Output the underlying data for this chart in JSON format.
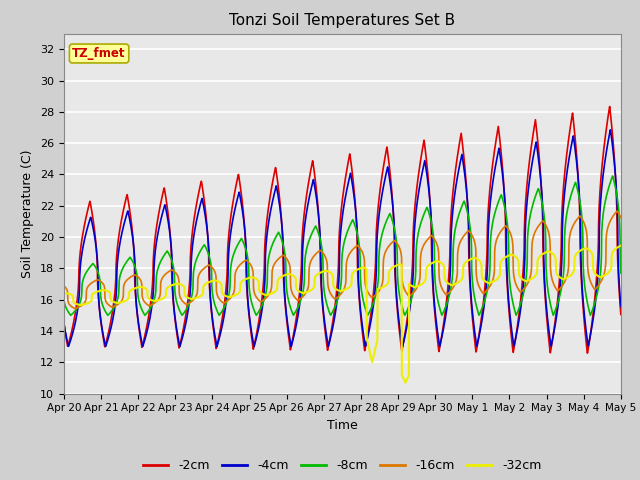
{
  "title": "Tonzi Soil Temperatures Set B",
  "xlabel": "Time",
  "ylabel": "Soil Temperature (C)",
  "ylim": [
    10,
    33
  ],
  "yticks": [
    10,
    12,
    14,
    16,
    18,
    20,
    22,
    24,
    26,
    28,
    30,
    32
  ],
  "fig_bg_color": "#d0d0d0",
  "plot_bg_color": "#e8e8e8",
  "grid_color": "#ffffff",
  "annotation_label": "TZ_fmet",
  "annotation_bg": "#ffff99",
  "annotation_border": "#aaaa00",
  "annotation_text_color": "#cc0000",
  "legend_labels": [
    "-2cm",
    "-4cm",
    "-8cm",
    "-16cm",
    "-32cm"
  ],
  "line_colors": [
    "#dd0000",
    "#0000cc",
    "#00bb00",
    "#dd7700",
    "#eeee00"
  ],
  "day_labels": [
    "Apr 20",
    "Apr 21",
    "Apr 22",
    "Apr 23",
    "Apr 24",
    "Apr 25",
    "Apr 26",
    "Apr 27",
    "Apr 28",
    "Apr 29",
    "Apr 30",
    "May 1",
    "May 2",
    "May 3",
    "May 4",
    "May 5"
  ]
}
